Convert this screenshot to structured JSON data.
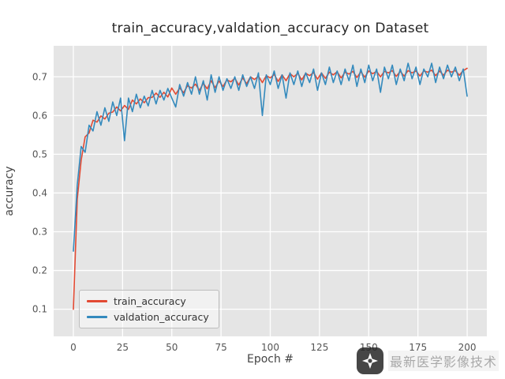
{
  "watermark": {
    "text": "最新医学影像技术",
    "logo": "seal-logo-icon"
  },
  "chart_data": {
    "type": "line",
    "title": "train_accuracy,valdation_accuracy on Dataset",
    "xlabel": "Epoch #",
    "ylabel": "accuracy",
    "style": "ggplot",
    "plot_bg": "#e5e5e5",
    "grid_color": "#ffffff",
    "tick_color": "#555555",
    "grid": true,
    "legend_position": "lower left",
    "xlim": [
      -10,
      210
    ],
    "ylim": [
      0.03,
      0.78
    ],
    "xticks": [
      0,
      25,
      50,
      75,
      100,
      125,
      150,
      175,
      200
    ],
    "xtick_labels": [
      "0",
      "25",
      "50",
      "75",
      "100",
      "125",
      "150",
      "175",
      "200"
    ],
    "yticks": [
      0.1,
      0.2,
      0.3,
      0.4,
      0.5,
      0.6,
      0.7
    ],
    "ytick_labels": [
      "0.1",
      "0.2",
      "0.3",
      "0.4",
      "0.5",
      "0.6",
      "0.7"
    ],
    "x": [
      0,
      2,
      4,
      6,
      8,
      10,
      12,
      14,
      16,
      18,
      20,
      22,
      24,
      26,
      28,
      30,
      32,
      34,
      36,
      38,
      40,
      42,
      44,
      46,
      48,
      50,
      52,
      54,
      56,
      58,
      60,
      62,
      64,
      66,
      68,
      70,
      72,
      74,
      76,
      78,
      80,
      82,
      84,
      86,
      88,
      90,
      92,
      94,
      96,
      98,
      100,
      102,
      104,
      106,
      108,
      110,
      112,
      114,
      116,
      118,
      120,
      122,
      124,
      126,
      128,
      130,
      132,
      134,
      136,
      138,
      140,
      142,
      144,
      146,
      148,
      150,
      152,
      154,
      156,
      158,
      160,
      162,
      164,
      166,
      168,
      170,
      172,
      174,
      176,
      178,
      180,
      182,
      184,
      186,
      188,
      190,
      192,
      194,
      196,
      198,
      200
    ],
    "series": [
      {
        "name": "train_accuracy",
        "color": "#E24A33",
        "values": [
          0.1,
          0.384,
          0.485,
          0.545,
          0.555,
          0.588,
          0.583,
          0.599,
          0.591,
          0.606,
          0.609,
          0.622,
          0.612,
          0.626,
          0.616,
          0.64,
          0.63,
          0.643,
          0.633,
          0.646,
          0.647,
          0.658,
          0.647,
          0.66,
          0.648,
          0.671,
          0.655,
          0.671,
          0.659,
          0.677,
          0.671,
          0.681,
          0.665,
          0.683,
          0.669,
          0.69,
          0.672,
          0.689,
          0.675,
          0.692,
          0.687,
          0.696,
          0.679,
          0.697,
          0.682,
          0.7,
          0.693,
          0.702,
          0.685,
          0.703,
          0.697,
          0.706,
          0.688,
          0.705,
          0.69,
          0.708,
          0.7,
          0.709,
          0.692,
          0.709,
          0.703,
          0.711,
          0.694,
          0.71,
          0.696,
          0.712,
          0.705,
          0.713,
          0.697,
          0.712,
          0.707,
          0.714,
          0.698,
          0.713,
          0.699,
          0.715,
          0.708,
          0.714,
          0.7,
          0.714,
          0.71,
          0.716,
          0.701,
          0.714,
          0.702,
          0.716,
          0.71,
          0.715,
          0.702,
          0.715,
          0.712,
          0.717,
          0.703,
          0.715,
          0.704,
          0.717,
          0.712,
          0.716,
          0.704,
          0.716,
          0.722
        ]
      },
      {
        "name": "valdation_accuracy",
        "color": "#348ABD",
        "values": [
          0.25,
          0.42,
          0.52,
          0.505,
          0.575,
          0.56,
          0.61,
          0.575,
          0.62,
          0.585,
          0.635,
          0.6,
          0.645,
          0.535,
          0.645,
          0.61,
          0.655,
          0.62,
          0.65,
          0.625,
          0.665,
          0.63,
          0.665,
          0.64,
          0.67,
          0.645,
          0.622,
          0.68,
          0.65,
          0.685,
          0.655,
          0.7,
          0.655,
          0.69,
          0.64,
          0.705,
          0.66,
          0.7,
          0.665,
          0.695,
          0.67,
          0.7,
          0.665,
          0.705,
          0.675,
          0.7,
          0.67,
          0.71,
          0.6,
          0.705,
          0.68,
          0.715,
          0.67,
          0.705,
          0.645,
          0.71,
          0.68,
          0.715,
          0.675,
          0.71,
          0.685,
          0.72,
          0.665,
          0.71,
          0.68,
          0.725,
          0.685,
          0.715,
          0.68,
          0.72,
          0.69,
          0.73,
          0.675,
          0.72,
          0.685,
          0.73,
          0.69,
          0.72,
          0.66,
          0.725,
          0.695,
          0.73,
          0.68,
          0.72,
          0.69,
          0.735,
          0.695,
          0.725,
          0.68,
          0.72,
          0.7,
          0.735,
          0.685,
          0.725,
          0.695,
          0.73,
          0.7,
          0.725,
          0.69,
          0.72,
          0.65
        ]
      }
    ]
  }
}
